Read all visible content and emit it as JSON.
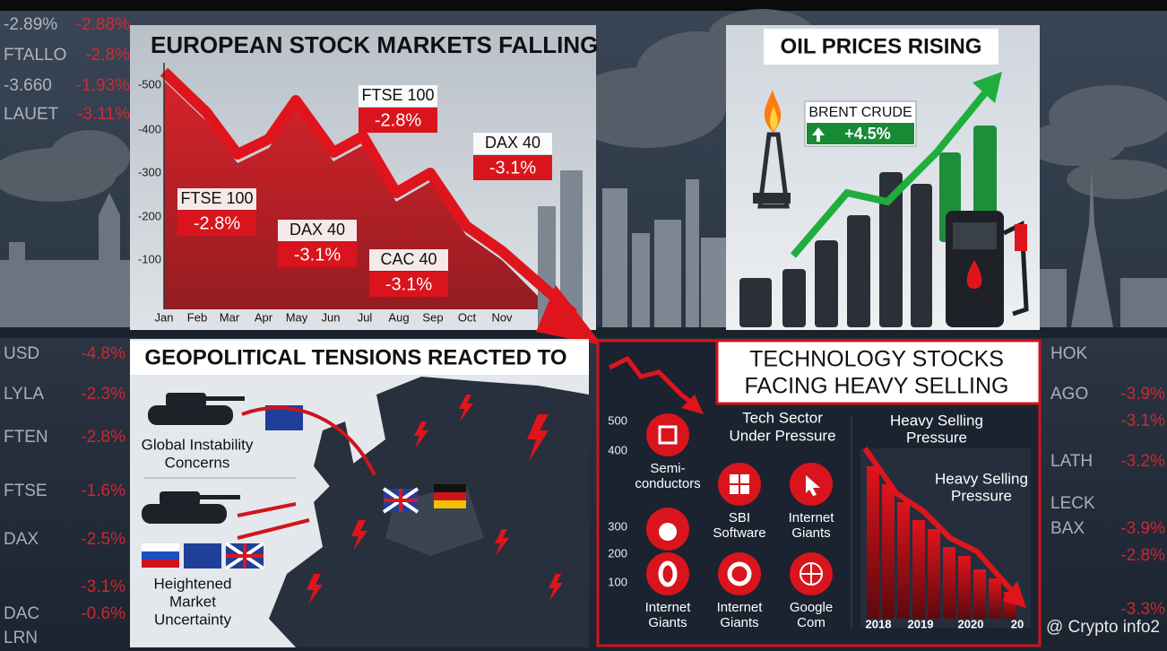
{
  "tickers": {
    "left_top": [
      {
        "name": "-2.89%",
        "change": "-2.88%"
      },
      {
        "name": "FTALLO",
        "change": "-2.8%"
      },
      {
        "name": "-3.660",
        "change": "-1.93%"
      },
      {
        "name": "LAUET",
        "change": "-3.11%"
      }
    ],
    "left_bottom": [
      {
        "name": "USD",
        "change": "-4.8%"
      },
      {
        "name": "LYLA",
        "change": "-2.3%"
      },
      {
        "name": "FTEN",
        "change": "-2.8%"
      },
      {
        "name": "FTSE",
        "change": "-1.6%"
      },
      {
        "name": "DAX",
        "change": "-2.5%"
      },
      {
        "change": "-3.1%"
      },
      {
        "name": "DAC",
        "change": "-0.6%"
      },
      {
        "name": "LRN"
      }
    ],
    "right_bottom": [
      {
        "name": "HOK"
      },
      {
        "name": "AGO",
        "change": "-3.9%"
      },
      {
        "change": "-3.1%"
      },
      {
        "name": "LATH",
        "change": "-3.2%"
      },
      {
        "name": "LECK"
      },
      {
        "name": "BAX",
        "change": "-3.9%"
      },
      {
        "change": "-2.8%"
      },
      {
        "change": "-3.3%"
      }
    ]
  },
  "stock_panel": {
    "title": "EUROPEAN STOCK MARKETS FALLING",
    "yticks": [
      "-500",
      "-400",
      "-300",
      "-200",
      "-100"
    ],
    "months": [
      "Jan",
      "Feb",
      "Mar",
      "Apr",
      "May",
      "Jun",
      "Jul",
      "Aug",
      "Sep",
      "Oct",
      "Nov"
    ],
    "labels": [
      {
        "name": "FTSE 100",
        "change": "-2.8%"
      },
      {
        "name": "DAX 40",
        "change": "-3.1%"
      },
      {
        "name": "CAC 40",
        "change": "-3.1%"
      },
      {
        "name": "FTSE 100",
        "change": "-2.8%"
      },
      {
        "name": "DAX 40",
        "change": "-3.1%"
      }
    ]
  },
  "oil_panel": {
    "title": "OIL PRICES RISING",
    "label": "BRENT CRUDE",
    "change": "+4.5%"
  },
  "geo_panel": {
    "title": "GEOPOLITICAL TENSIONS REACTED TO",
    "caption_top": [
      "Global Instability",
      "Concerns"
    ],
    "caption_bottom": [
      "Heightened",
      "Market",
      "Uncertainty"
    ]
  },
  "tech_panel": {
    "title": [
      "TECHNOLOGY STOCKS",
      "FACING HEAVY SELLING"
    ],
    "yticks": [
      "500",
      "400",
      "300",
      "200",
      "100"
    ],
    "subtitle": [
      "Tech Sector",
      "Under Pressure"
    ],
    "icons": [
      {
        "label": [
          "Semi-",
          "conductors"
        ]
      },
      {
        "label": [
          "SBI",
          "Software"
        ]
      },
      {
        "label": [
          "Internet",
          "Giants"
        ]
      },
      {
        "label": [
          "Internet",
          "Giants"
        ]
      },
      {
        "label": [
          "Internet",
          "Giants"
        ]
      },
      {
        "label": [
          "Google",
          "Com"
        ]
      }
    ],
    "right_title": [
      "Heavy Selling",
      "Pressure"
    ],
    "right_subtitle": [
      "Heavy Selling",
      "Pressure"
    ],
    "years": [
      "2018",
      "2019",
      "2020",
      "20"
    ]
  },
  "watermark": "@ Crypto info2"
}
